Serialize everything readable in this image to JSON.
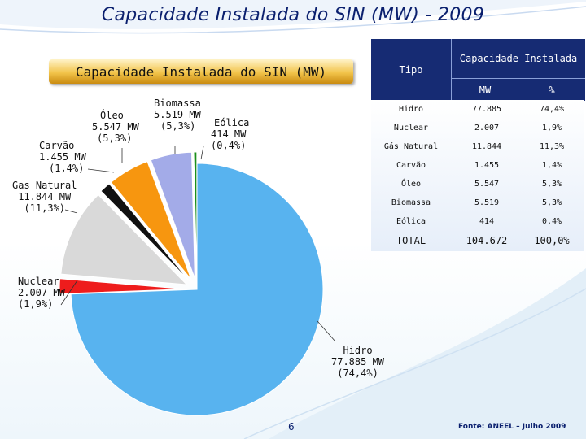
{
  "slide": {
    "main_title": "Capacidade Instalada do SIN (MW) - 2009",
    "chart_title": "Capacidade Instalada do SIN (MW)",
    "page_number": "6",
    "source": "Fonte: ANEEL – Julho 2009"
  },
  "chart_data": {
    "type": "pie",
    "title": "Capacidade Instalada do SIN (MW)",
    "unit": "MW",
    "slices": [
      {
        "name": "Hidro",
        "value": 77885,
        "label_value": "77.885 MW",
        "percent": "(74,4%)",
        "color": "#58b3ef"
      },
      {
        "name": "Nuclear",
        "value": 2007,
        "label_value": "2.007 MW",
        "percent": "(1,9%)",
        "color": "#ee1c1c"
      },
      {
        "name": "Gas Natural",
        "value": 11844,
        "label_value": "11.844 MW",
        "percent": "(11,3%)",
        "color": "#d9d9d9"
      },
      {
        "name": "Carvão",
        "value": 1455,
        "label_value": "1.455 MW",
        "percent": "(1,4%)",
        "color": "#111111"
      },
      {
        "name": "Óleo",
        "value": 5547,
        "label_value": "5.547 MW",
        "percent": "(5,3%)",
        "color": "#f7960f"
      },
      {
        "name": "Biomassa",
        "value": 5519,
        "label_value": "5.519 MW",
        "percent": "(5,3%)",
        "color": "#a3abe8"
      },
      {
        "name": "Eólica",
        "value": 414,
        "label_value": "414 MW",
        "percent": "(0,4%)",
        "color": "#1b8f1b"
      }
    ]
  },
  "table": {
    "header_tipo": "Tipo",
    "header_capacidade": "Capacidade Instalada",
    "header_mw": "MW",
    "header_pct": "%",
    "rows": [
      {
        "tipo": "Hidro",
        "mw": "77.885",
        "pct": "74,4%"
      },
      {
        "tipo": "Nuclear",
        "mw": "2.007",
        "pct": "1,9%"
      },
      {
        "tipo": "Gás Natural",
        "mw": "11.844",
        "pct": "11,3%"
      },
      {
        "tipo": "Carvão",
        "mw": "1.455",
        "pct": "1,4%"
      },
      {
        "tipo": "Óleo",
        "mw": "5.547",
        "pct": "5,3%"
      },
      {
        "tipo": "Biomassa",
        "mw": "5.519",
        "pct": "5,3%"
      },
      {
        "tipo": "Eólica",
        "mw": "414",
        "pct": "0,4%"
      }
    ],
    "total": {
      "tipo": "TOTAL",
      "mw": "104.672",
      "pct": "100,0%"
    }
  }
}
